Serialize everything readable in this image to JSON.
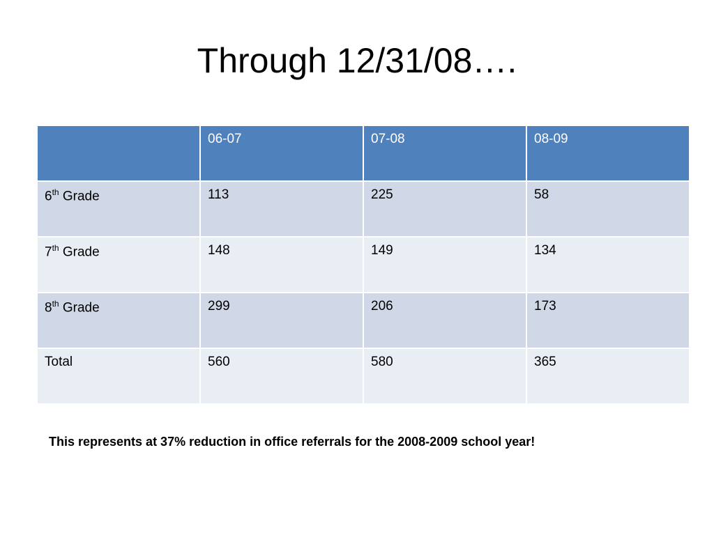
{
  "title": "Through 12/31/08….",
  "table": {
    "columns": [
      "06-07",
      "07-08",
      "08-09"
    ],
    "rows": [
      {
        "label": {
          "number": "6",
          "suffix": "th",
          "text": "Grade"
        },
        "values": [
          113,
          225,
          58
        ]
      },
      {
        "label": {
          "number": "7",
          "suffix": "th",
          "text": "Grade"
        },
        "values": [
          148,
          149,
          134
        ]
      },
      {
        "label": {
          "number": "8",
          "suffix": "th",
          "text": "Grade"
        },
        "values": [
          299,
          206,
          173
        ]
      },
      {
        "label": {
          "text": "Total"
        },
        "values": [
          560,
          580,
          365
        ]
      }
    ]
  },
  "note": "This represents at 37% reduction in office referrals for the 2008-2009 school year!"
}
